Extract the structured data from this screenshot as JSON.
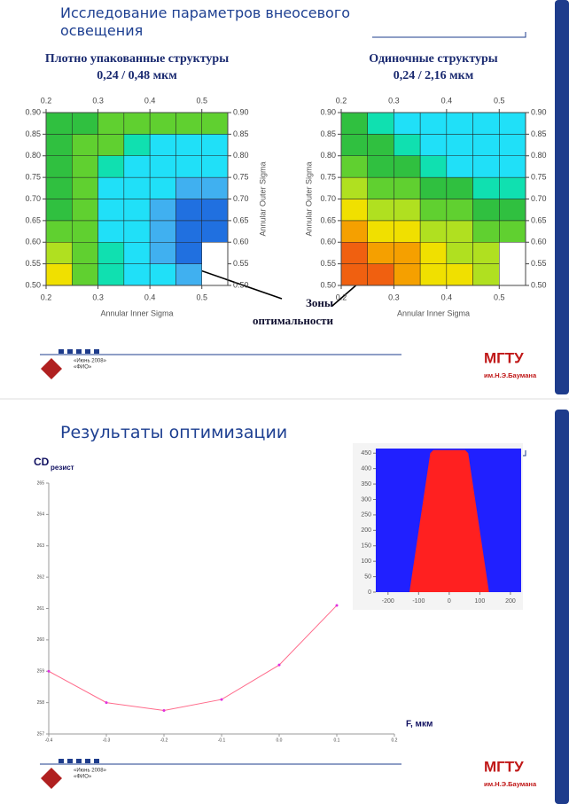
{
  "slides": [
    {
      "title": "Исследование параметров внеосевого освещения",
      "annotation": [
        "Зоны",
        "оптимальности"
      ],
      "footer": {
        "date": "«Июнь 2008»",
        "author": "«ФИО»",
        "org": "МГТУ",
        "org_sub": "им.Н.Э.Баумана"
      }
    },
    {
      "title": "Результаты оптимизации",
      "footer": {
        "date": "«Июнь 2008»",
        "author": "«ФИО»",
        "org": "МГТУ",
        "org_sub": "им.Н.Э.Баумана"
      }
    }
  ],
  "chart_data": [
    {
      "type": "contour",
      "title": "Плотно упакованные структуры",
      "subtitle": "0,24 / 0,48 мкм",
      "xlabel": "Annular Inner Sigma",
      "ylabel": "Annular Outer Sigma",
      "ylabel_side": "right",
      "xlim": [
        0.2,
        0.55
      ],
      "ylim": [
        0.5,
        0.9
      ],
      "xticks": [
        0.2,
        0.3,
        0.4,
        0.5
      ],
      "yticks": [
        {
          "value": 0.5,
          "label": "0.50"
        },
        {
          "value": 0.55,
          "label": "0.55"
        },
        {
          "value": 0.6,
          "label": "0.60"
        },
        {
          "value": 0.65,
          "label": "0.65"
        },
        {
          "value": 0.7,
          "label": "0.70"
        },
        {
          "value": 0.75,
          "label": "0.75"
        },
        {
          "value": 0.8,
          "label": "0.80"
        },
        {
          "value": 0.85,
          "label": "0.85"
        },
        {
          "value": 0.9,
          "label": "0.90"
        }
      ],
      "x": [
        0.2,
        0.25,
        0.3,
        0.35,
        0.4,
        0.45,
        0.5,
        0.55
      ],
      "y": [
        0.5,
        0.55,
        0.6,
        0.65,
        0.7,
        0.75,
        0.8,
        0.85,
        0.9
      ],
      "colors": [
        "#f06010",
        "#f5a000",
        "#f0e000",
        "#b0e020",
        "#60d030",
        "#30c040",
        "#10e0b0",
        "#20e0f8",
        "#40b0f0",
        "#2070e0"
      ],
      "z": [
        [
          2,
          4,
          6,
          7,
          7,
          8,
          null
        ],
        [
          3,
          4,
          6,
          7,
          8,
          9,
          null
        ],
        [
          4,
          4,
          7,
          7,
          8,
          9,
          9
        ],
        [
          5,
          4,
          7,
          7,
          8,
          9,
          9
        ],
        [
          5,
          4,
          7,
          7,
          7,
          8,
          8
        ],
        [
          5,
          4,
          6,
          7,
          7,
          7,
          7
        ],
        [
          5,
          4,
          4,
          6,
          7,
          7,
          7
        ],
        [
          5,
          5,
          4,
          4,
          4,
          4,
          4
        ]
      ]
    },
    {
      "type": "contour",
      "title": "Одиночные структуры",
      "subtitle": "0,24 / 2,16 мкм",
      "xlabel": "Annular Inner Sigma",
      "ylabel": "Annular Outer Sigma",
      "ylabel_side": "left",
      "xlim": [
        0.2,
        0.55
      ],
      "ylim": [
        0.5,
        0.9
      ],
      "xticks": [
        0.2,
        0.3,
        0.4,
        0.5
      ],
      "yticks": [
        {
          "value": 0.5,
          "label": "0.50"
        },
        {
          "value": 0.55,
          "label": "0.55"
        },
        {
          "value": 0.6,
          "label": "0.60"
        },
        {
          "value": 0.65,
          "label": "0.65"
        },
        {
          "value": 0.7,
          "label": "0.70"
        },
        {
          "value": 0.75,
          "label": "0.75"
        },
        {
          "value": 0.8,
          "label": "0.80"
        },
        {
          "value": 0.85,
          "label": "0.85"
        },
        {
          "value": 0.9,
          "label": "0.90"
        }
      ],
      "x": [
        0.2,
        0.25,
        0.3,
        0.35,
        0.4,
        0.45,
        0.5,
        0.55
      ],
      "y": [
        0.5,
        0.55,
        0.6,
        0.65,
        0.7,
        0.75,
        0.8,
        0.85,
        0.9
      ],
      "colors": [
        "#f06010",
        "#f5a000",
        "#f0e000",
        "#b0e020",
        "#60d030",
        "#30c040",
        "#10e0b0",
        "#20e0f8",
        "#40b0f0",
        "#2070e0"
      ],
      "z": [
        [
          0,
          0,
          1,
          2,
          2,
          3,
          null
        ],
        [
          0,
          1,
          1,
          2,
          3,
          3,
          null
        ],
        [
          1,
          2,
          2,
          3,
          3,
          4,
          4
        ],
        [
          2,
          3,
          3,
          4,
          4,
          5,
          5
        ],
        [
          3,
          4,
          4,
          5,
          5,
          6,
          6
        ],
        [
          4,
          5,
          5,
          6,
          7,
          7,
          7
        ],
        [
          5,
          5,
          6,
          7,
          7,
          7,
          7
        ],
        [
          5,
          6,
          7,
          7,
          7,
          7,
          7
        ]
      ]
    },
    {
      "type": "line",
      "ylabel": "CD",
      "ylabel_sub": "резист",
      "xlabel": "F, мкм",
      "x": [
        -0.4,
        -0.3,
        -0.2,
        -0.1,
        0.0,
        0.1
      ],
      "values": [
        259.0,
        258.0,
        257.75,
        258.1,
        259.2,
        261.1
      ],
      "color": "#ff6a8a",
      "marker_color": "#e030e0",
      "xlim": [
        -0.4,
        0.2
      ],
      "xticks": [
        -0.4,
        -0.3,
        -0.2,
        -0.1,
        {
          "value": 0,
          "label": "0.0"
        },
        0.1,
        0.2
      ],
      "ylim": [
        257,
        265
      ],
      "yticks": [
        257,
        258,
        259,
        260,
        261,
        262,
        263,
        264,
        265
      ]
    },
    {
      "type": "area",
      "x": [
        -130,
        -62,
        -52,
        52,
        62,
        130
      ],
      "y": [
        0,
        450,
        460,
        460,
        450,
        0
      ],
      "color": "#ff2020",
      "background": "#2020ff",
      "xlim": [
        -240,
        235
      ],
      "xticks": [
        -200,
        -100,
        0,
        100,
        200
      ],
      "ylim": [
        0,
        465
      ],
      "yticks": [
        0,
        50,
        100,
        150,
        200,
        250,
        300,
        350,
        400,
        450
      ]
    }
  ]
}
